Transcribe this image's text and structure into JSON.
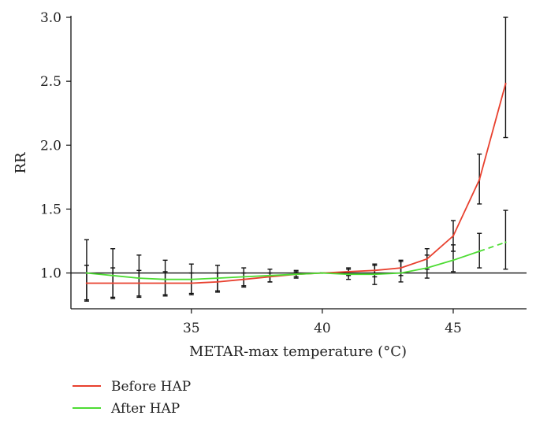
{
  "chart_data": {
    "type": "line",
    "title": "",
    "xlabel": "METAR-max temperature (°C)",
    "ylabel": "RR",
    "xlim": [
      30.4,
      47.8
    ],
    "ylim": [
      0.72,
      3.0
    ],
    "xticks": [
      35,
      40,
      45
    ],
    "yticks": [
      1.0,
      1.5,
      2.0,
      2.5,
      3.0
    ],
    "ytick_labels": [
      "1.0",
      "1.5",
      "2.0",
      "2.5",
      "3.0"
    ],
    "reference_line": 1.0,
    "series": [
      {
        "name": "Before HAP",
        "color": "#e8402e",
        "x": [
          31,
          32,
          33,
          34,
          35,
          36,
          37,
          38,
          39,
          40,
          41,
          42,
          43,
          44,
          45,
          46,
          47
        ],
        "values": [
          0.92,
          0.92,
          0.92,
          0.92,
          0.92,
          0.93,
          0.95,
          0.97,
          0.99,
          1.0,
          1.01,
          1.02,
          1.04,
          1.11,
          1.29,
          1.73,
          2.48
        ],
        "ci_low": [
          0.79,
          0.81,
          0.82,
          0.83,
          0.84,
          0.86,
          0.9,
          0.93,
          0.97,
          1.0,
          0.98,
          0.97,
          0.98,
          1.03,
          1.17,
          1.54,
          2.06
        ],
        "ci_high": [
          1.06,
          1.04,
          1.02,
          1.01,
          1.0,
          1.0,
          1.0,
          1.0,
          1.01,
          1.0,
          1.04,
          1.07,
          1.1,
          1.19,
          1.41,
          1.93,
          3.0
        ]
      },
      {
        "name": "After HAP",
        "color": "#4ddc33",
        "x": [
          31,
          32,
          33,
          34,
          35,
          36,
          37,
          38,
          39,
          40,
          41,
          42,
          43,
          44,
          45,
          46,
          47
        ],
        "values": [
          1.0,
          0.98,
          0.96,
          0.95,
          0.95,
          0.96,
          0.97,
          0.98,
          0.99,
          1.0,
          0.99,
          0.99,
          1.0,
          1.04,
          1.1,
          1.17,
          1.24
        ],
        "ci_low": [
          0.78,
          0.8,
          0.81,
          0.82,
          0.83,
          0.85,
          0.89,
          0.93,
          0.96,
          1.0,
          0.95,
          0.91,
          0.93,
          0.96,
          1.01,
          1.04,
          1.03
        ],
        "ci_high": [
          1.26,
          1.19,
          1.14,
          1.1,
          1.07,
          1.06,
          1.04,
          1.03,
          1.02,
          1.0,
          1.03,
          1.06,
          1.09,
          1.14,
          1.22,
          1.31,
          1.49
        ]
      }
    ],
    "legend": {
      "position": "bottom-left",
      "entries": [
        "Before HAP",
        "After HAP"
      ]
    }
  }
}
